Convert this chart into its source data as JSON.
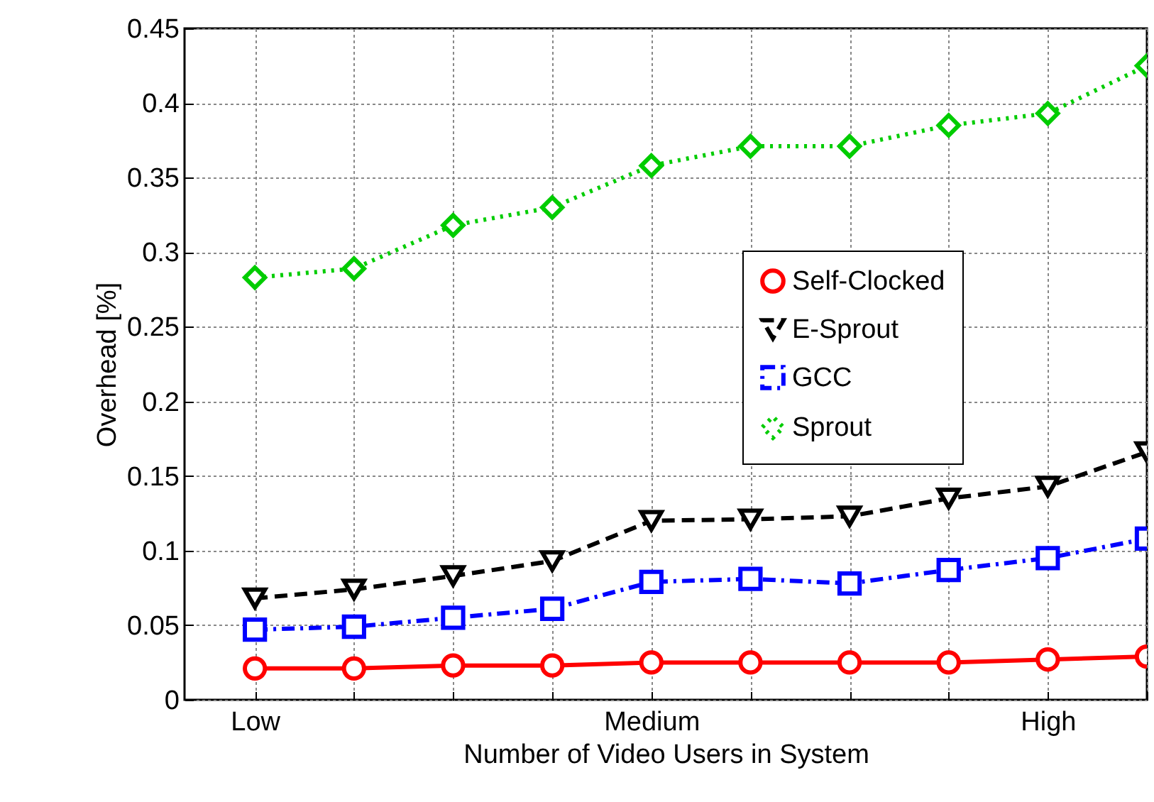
{
  "chart_data": {
    "type": "line",
    "xlabel": "Number of Video Users in System",
    "ylabel": "Overhead [%]",
    "categories": [
      "Low",
      null,
      null,
      null,
      "Medium",
      null,
      null,
      null,
      "High",
      null
    ],
    "ylim": [
      0,
      0.45
    ],
    "yticks": [
      {
        "value": 0,
        "label": "0"
      },
      0.05,
      0.1,
      0.15,
      {
        "value": 0.2,
        "label": "0.2"
      },
      0.25,
      {
        "value": 0.3,
        "label": "0.3"
      },
      0.35,
      {
        "value": 0.4,
        "label": "0.4"
      },
      0.45
    ],
    "grid": true,
    "legend": "right",
    "series": [
      {
        "name": "Self-Clocked",
        "color": "#ff0000",
        "marker": "circle",
        "line_style": "solid",
        "values": [
          0.021,
          0.021,
          0.023,
          0.023,
          0.025,
          0.025,
          0.025,
          0.025,
          0.027,
          0.029
        ]
      },
      {
        "name": "E-Sprout",
        "color": "#000000",
        "marker": "triangle-down",
        "line_style": "dashed",
        "values": [
          0.068,
          0.074,
          0.083,
          0.093,
          0.12,
          0.121,
          0.123,
          0.135,
          0.143,
          0.166
        ]
      },
      {
        "name": "GCC",
        "color": "#0000ff",
        "marker": "square",
        "line_style": "dashdot",
        "values": [
          0.047,
          0.049,
          0.055,
          0.061,
          0.079,
          0.081,
          0.078,
          0.087,
          0.095,
          0.108
        ]
      },
      {
        "name": "Sprout",
        "color": "#00cc00",
        "marker": "diamond",
        "line_style": "dotted",
        "values": [
          0.283,
          0.289,
          0.318,
          0.33,
          0.358,
          0.371,
          0.371,
          0.385,
          0.393,
          0.425
        ]
      }
    ]
  }
}
